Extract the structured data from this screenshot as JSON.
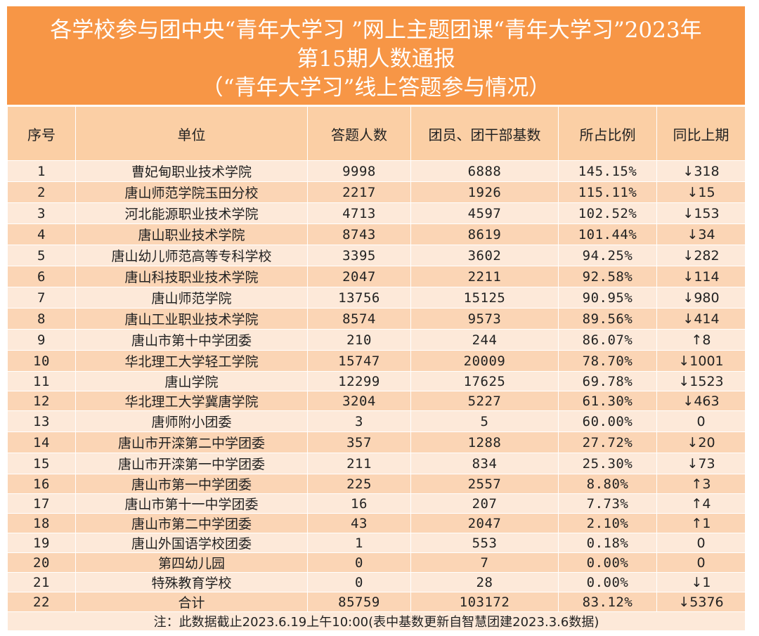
{
  "title": {
    "line1": "各学校参与团中央“青年大学习 ”网上主题团课“青年大学习”2023年",
    "line2": "第15期人数通报",
    "line3": "（“青年大学习”线上答题参与情况）"
  },
  "columns": [
    "序号",
    "单位",
    "答题人数",
    "团员、团干部基数",
    "所占比例",
    "同比上期"
  ],
  "rows": [
    {
      "no": "1",
      "unit": "曹妃甸职业技术学院",
      "answered": "9998",
      "base": "6888",
      "ratio": "145.15%",
      "trend": "↓318"
    },
    {
      "no": "2",
      "unit": "唐山师范学院玉田分校",
      "answered": "2217",
      "base": "1926",
      "ratio": "115.11%",
      "trend": "↓15"
    },
    {
      "no": "3",
      "unit": "河北能源职业技术学院",
      "answered": "4713",
      "base": "4597",
      "ratio": "102.52%",
      "trend": "↓153"
    },
    {
      "no": "4",
      "unit": "唐山职业技术学院",
      "answered": "8743",
      "base": "8619",
      "ratio": "101.44%",
      "trend": "↓34"
    },
    {
      "no": "5",
      "unit": "唐山幼儿师范高等专科学校",
      "answered": "3395",
      "base": "3602",
      "ratio": "94.25%",
      "trend": "↓282"
    },
    {
      "no": "6",
      "unit": "唐山科技职业技术学院",
      "answered": "2047",
      "base": "2211",
      "ratio": "92.58%",
      "trend": "↓114"
    },
    {
      "no": "7",
      "unit": "唐山师范学院",
      "answered": "13756",
      "base": "15125",
      "ratio": "90.95%",
      "trend": "↓980"
    },
    {
      "no": "8",
      "unit": "唐山工业职业技术学院",
      "answered": "8574",
      "base": "9573",
      "ratio": "89.56%",
      "trend": "↓414"
    },
    {
      "no": "9",
      "unit": "唐山市第十中学团委",
      "answered": "210",
      "base": "244",
      "ratio": "86.07%",
      "trend": "↑8"
    },
    {
      "no": "10",
      "unit": "华北理工大学轻工学院",
      "answered": "15747",
      "base": "20009",
      "ratio": "78.70%",
      "trend": "↓1001"
    },
    {
      "no": "11",
      "unit": "唐山学院",
      "answered": "12299",
      "base": "17625",
      "ratio": "69.78%",
      "trend": "↓1523"
    },
    {
      "no": "12",
      "unit": "华北理工大学冀唐学院",
      "answered": "3204",
      "base": "5227",
      "ratio": "61.30%",
      "trend": "↓463"
    },
    {
      "no": "13",
      "unit": "唐师附小团委",
      "answered": "3",
      "base": "5",
      "ratio": "60.00%",
      "trend": "0"
    },
    {
      "no": "14",
      "unit": "唐山市开滦第二中学团委",
      "answered": "357",
      "base": "1288",
      "ratio": "27.72%",
      "trend": "↓20"
    },
    {
      "no": "15",
      "unit": "唐山市开滦第一中学团委",
      "answered": "211",
      "base": "834",
      "ratio": "25.30%",
      "trend": "↓73"
    },
    {
      "no": "16",
      "unit": "唐山市第一中学团委",
      "answered": "225",
      "base": "2557",
      "ratio": "8.80%",
      "trend": "↑3"
    },
    {
      "no": "17",
      "unit": "唐山市第十一中学团委",
      "answered": "16",
      "base": "207",
      "ratio": "7.73%",
      "trend": "↑4"
    },
    {
      "no": "18",
      "unit": "唐山市第二中学团委",
      "answered": "43",
      "base": "2047",
      "ratio": "2.10%",
      "trend": "↑1"
    },
    {
      "no": "19",
      "unit": "唐山外国语学校团委",
      "answered": "1",
      "base": "553",
      "ratio": "0.18%",
      "trend": "0"
    },
    {
      "no": "20",
      "unit": "第四幼儿园",
      "answered": "0",
      "base": "7",
      "ratio": "0.00%",
      "trend": "0"
    },
    {
      "no": "21",
      "unit": "特殊教育学校",
      "answered": "0",
      "base": "28",
      "ratio": "0.00%",
      "trend": "↓1"
    },
    {
      "no": "22",
      "unit": "合计",
      "answered": "85759",
      "base": "103172",
      "ratio": "83.12%",
      "trend": "↓5376"
    }
  ],
  "footnote": "注：此数据截止2023.6.19上午10:00(表中基数更新自智慧团建2023.3.6数据)",
  "colors": {
    "header_bg": "#f79646",
    "head_row": "#fbcfa5",
    "row_light": "#fde9d9",
    "row_dark": "#fbd5b5"
  }
}
